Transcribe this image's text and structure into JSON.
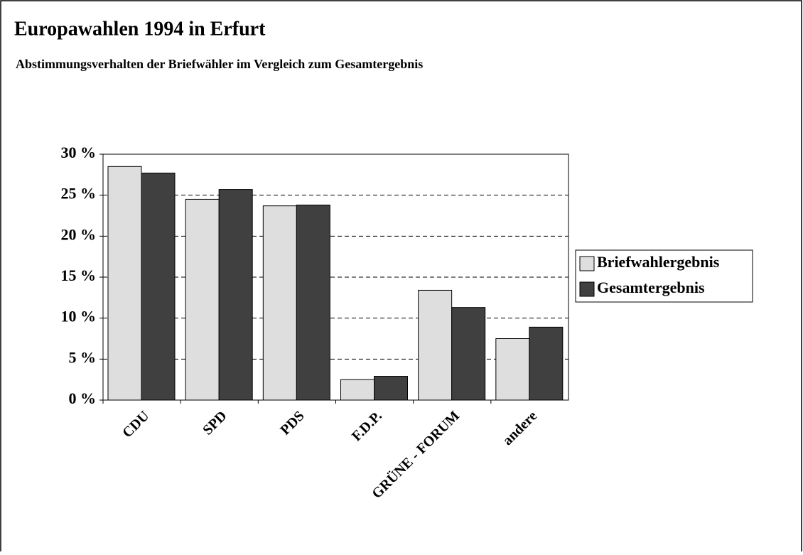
{
  "chart_data": {
    "type": "bar",
    "title": "Europawahlen 1994 in Erfurt",
    "subtitle": "Abstimmungsverhalten der Briefwähler im Vergleich zum Gesamtergebnis",
    "categories": [
      "CDU",
      "SPD",
      "PDS",
      "F.D.P.",
      "GRÜNE - FORUM",
      "andere"
    ],
    "series": [
      {
        "name": "Briefwahlergebnis",
        "color": "#dedede",
        "values": [
          28.5,
          24.5,
          23.7,
          2.5,
          13.4,
          7.5
        ]
      },
      {
        "name": "Gesamtergebnis",
        "color": "#404040",
        "values": [
          27.7,
          25.7,
          23.8,
          2.9,
          11.3,
          8.9
        ]
      }
    ],
    "ylim": [
      0,
      30
    ],
    "yticks": [
      {
        "value": 0,
        "label": "0 %"
      },
      {
        "value": 5,
        "label": "5 %"
      },
      {
        "value": 10,
        "label": "10 %"
      },
      {
        "value": 15,
        "label": "15 %"
      },
      {
        "value": 20,
        "label": "20 %"
      },
      {
        "value": 25,
        "label": "25 %"
      },
      {
        "value": 30,
        "label": "30 %"
      }
    ],
    "grid": true,
    "legend": "right"
  }
}
